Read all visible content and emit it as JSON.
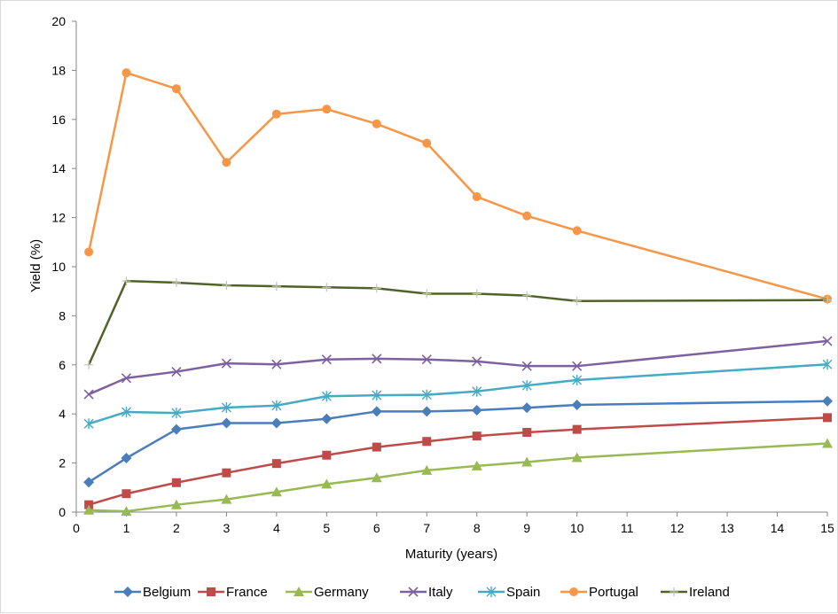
{
  "chart_data": {
    "type": "line",
    "title": "",
    "xlabel": "Maturity  (years)",
    "ylabel": "Yield (%)",
    "xlim": [
      0,
      15
    ],
    "ylim": [
      0,
      20
    ],
    "x_ticks": [
      0,
      1,
      2,
      3,
      4,
      5,
      6,
      7,
      8,
      9,
      10,
      11,
      12,
      13,
      14,
      15
    ],
    "y_ticks": [
      0,
      2,
      4,
      6,
      8,
      10,
      12,
      14,
      16,
      18,
      20
    ],
    "grid": false,
    "legend_position": "bottom",
    "series": [
      {
        "name": "Belgium",
        "color": "#4A7EBB",
        "marker": "diamond",
        "x": [
          0.25,
          1,
          2,
          3,
          4,
          5,
          6,
          7,
          8,
          9,
          10,
          15
        ],
        "y": [
          1.22,
          2.2,
          3.37,
          3.63,
          3.63,
          3.8,
          4.1,
          4.1,
          4.15,
          4.25,
          4.37,
          4.52
        ]
      },
      {
        "name": "France",
        "color": "#BE4B48",
        "marker": "square",
        "x": [
          0.25,
          1,
          2,
          3,
          4,
          5,
          6,
          7,
          8,
          9,
          10,
          15
        ],
        "y": [
          0.3,
          0.75,
          1.2,
          1.6,
          1.98,
          2.32,
          2.65,
          2.88,
          3.1,
          3.25,
          3.37,
          3.85
        ]
      },
      {
        "name": "Germany",
        "color": "#98B954",
        "marker": "triangle",
        "x": [
          0.25,
          1,
          2,
          3,
          4,
          5,
          6,
          7,
          8,
          9,
          10,
          15
        ],
        "y": [
          0.08,
          0.03,
          0.3,
          0.52,
          0.82,
          1.14,
          1.4,
          1.7,
          1.88,
          2.04,
          2.22,
          2.8
        ]
      },
      {
        "name": "Italy",
        "color": "#7D60A0",
        "marker": "x",
        "x": [
          0.25,
          1,
          2,
          3,
          4,
          5,
          6,
          7,
          8,
          9,
          10,
          15
        ],
        "y": [
          4.8,
          5.46,
          5.72,
          6.06,
          6.02,
          6.22,
          6.25,
          6.22,
          6.14,
          5.95,
          5.95,
          6.97
        ]
      },
      {
        "name": "Spain",
        "color": "#46AAC5",
        "marker": "asterisk",
        "x": [
          0.25,
          1,
          2,
          3,
          4,
          5,
          6,
          7,
          8,
          9,
          10,
          15
        ],
        "y": [
          3.6,
          4.08,
          4.04,
          4.26,
          4.34,
          4.72,
          4.76,
          4.78,
          4.92,
          5.16,
          5.38,
          6.02
        ]
      },
      {
        "name": "Portugal",
        "color": "#F79646",
        "marker": "circle",
        "x": [
          0.25,
          1,
          2,
          3,
          4,
          5,
          6,
          7,
          8,
          9,
          10,
          15
        ],
        "y": [
          10.6,
          17.9,
          17.25,
          14.25,
          16.22,
          16.42,
          15.82,
          15.03,
          12.85,
          12.07,
          11.47,
          8.68
        ]
      },
      {
        "name": "Ireland",
        "color": "#4F6228",
        "marker": "plus",
        "x": [
          0.25,
          1,
          2,
          3,
          4,
          5,
          6,
          7,
          8,
          9,
          10,
          15
        ],
        "y": [
          6.0,
          9.42,
          9.35,
          9.24,
          9.2,
          9.16,
          9.12,
          8.9,
          8.9,
          8.82,
          8.6,
          8.64
        ]
      }
    ]
  }
}
